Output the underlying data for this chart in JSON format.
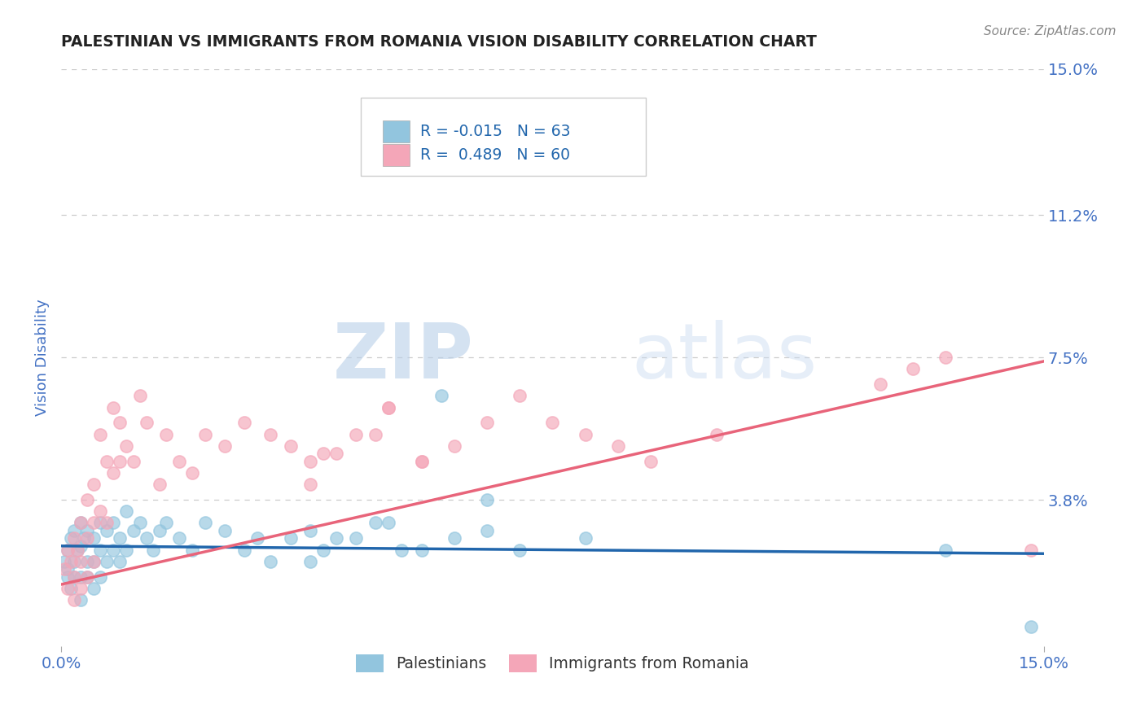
{
  "title": "PALESTINIAN VS IMMIGRANTS FROM ROMANIA VISION DISABILITY CORRELATION CHART",
  "source": "Source: ZipAtlas.com",
  "ylabel": "Vision Disability",
  "xlim": [
    0.0,
    0.15
  ],
  "ylim": [
    0.0,
    0.15
  ],
  "xticks": [
    0.0,
    0.15
  ],
  "xtick_labels": [
    "0.0%",
    "15.0%"
  ],
  "yticks": [
    0.038,
    0.075,
    0.112,
    0.15
  ],
  "ytick_labels": [
    "3.8%",
    "7.5%",
    "11.2%",
    "15.0%"
  ],
  "blue_R": -0.015,
  "blue_N": 63,
  "pink_R": 0.489,
  "pink_N": 60,
  "blue_color": "#92c5de",
  "pink_color": "#f4a6b8",
  "blue_line_color": "#2166ac",
  "pink_line_color": "#e8647a",
  "background_color": "#ffffff",
  "grid_color": "#cccccc",
  "title_color": "#222222",
  "axis_label_color": "#4472c4",
  "tick_color": "#4472c4",
  "watermark_zip": "ZIP",
  "watermark_atlas": "atlas",
  "legend_label_blue": "Palestinians",
  "legend_label_pink": "Immigrants from Romania",
  "blue_line_y0": 0.026,
  "blue_line_y1": 0.024,
  "pink_line_y0": 0.016,
  "pink_line_y1": 0.074,
  "blue_x": [
    0.0005,
    0.001,
    0.001,
    0.001,
    0.0015,
    0.0015,
    0.002,
    0.002,
    0.002,
    0.0025,
    0.003,
    0.003,
    0.003,
    0.003,
    0.0035,
    0.004,
    0.004,
    0.004,
    0.005,
    0.005,
    0.005,
    0.006,
    0.006,
    0.006,
    0.007,
    0.007,
    0.008,
    0.008,
    0.009,
    0.009,
    0.01,
    0.01,
    0.011,
    0.012,
    0.013,
    0.014,
    0.015,
    0.016,
    0.018,
    0.02,
    0.022,
    0.025,
    0.028,
    0.03,
    0.032,
    0.035,
    0.038,
    0.04,
    0.045,
    0.05,
    0.055,
    0.06,
    0.065,
    0.038,
    0.042,
    0.048,
    0.052,
    0.058,
    0.065,
    0.07,
    0.08,
    0.135,
    0.148
  ],
  "blue_y": [
    0.022,
    0.025,
    0.02,
    0.018,
    0.028,
    0.015,
    0.03,
    0.022,
    0.018,
    0.025,
    0.032,
    0.026,
    0.018,
    0.012,
    0.028,
    0.03,
    0.022,
    0.018,
    0.028,
    0.022,
    0.015,
    0.032,
    0.025,
    0.018,
    0.03,
    0.022,
    0.032,
    0.025,
    0.028,
    0.022,
    0.035,
    0.025,
    0.03,
    0.032,
    0.028,
    0.025,
    0.03,
    0.032,
    0.028,
    0.025,
    0.032,
    0.03,
    0.025,
    0.028,
    0.022,
    0.028,
    0.03,
    0.025,
    0.028,
    0.032,
    0.025,
    0.028,
    0.038,
    0.022,
    0.028,
    0.032,
    0.025,
    0.065,
    0.03,
    0.025,
    0.028,
    0.025,
    0.005
  ],
  "pink_x": [
    0.0005,
    0.001,
    0.001,
    0.0015,
    0.002,
    0.002,
    0.002,
    0.0025,
    0.003,
    0.003,
    0.003,
    0.004,
    0.004,
    0.004,
    0.005,
    0.005,
    0.005,
    0.006,
    0.006,
    0.007,
    0.007,
    0.008,
    0.008,
    0.009,
    0.009,
    0.01,
    0.011,
    0.012,
    0.013,
    0.015,
    0.016,
    0.018,
    0.02,
    0.022,
    0.025,
    0.028,
    0.032,
    0.035,
    0.038,
    0.04,
    0.045,
    0.05,
    0.055,
    0.038,
    0.042,
    0.048,
    0.05,
    0.055,
    0.06,
    0.065,
    0.07,
    0.075,
    0.08,
    0.085,
    0.09,
    0.1,
    0.125,
    0.13,
    0.135,
    0.148
  ],
  "pink_y": [
    0.02,
    0.025,
    0.015,
    0.022,
    0.028,
    0.018,
    0.012,
    0.025,
    0.032,
    0.022,
    0.015,
    0.038,
    0.028,
    0.018,
    0.042,
    0.032,
    0.022,
    0.055,
    0.035,
    0.048,
    0.032,
    0.062,
    0.045,
    0.058,
    0.048,
    0.052,
    0.048,
    0.065,
    0.058,
    0.042,
    0.055,
    0.048,
    0.045,
    0.055,
    0.052,
    0.058,
    0.055,
    0.052,
    0.048,
    0.05,
    0.055,
    0.062,
    0.048,
    0.042,
    0.05,
    0.055,
    0.062,
    0.048,
    0.052,
    0.058,
    0.065,
    0.058,
    0.055,
    0.052,
    0.048,
    0.055,
    0.068,
    0.072,
    0.075,
    0.025
  ]
}
